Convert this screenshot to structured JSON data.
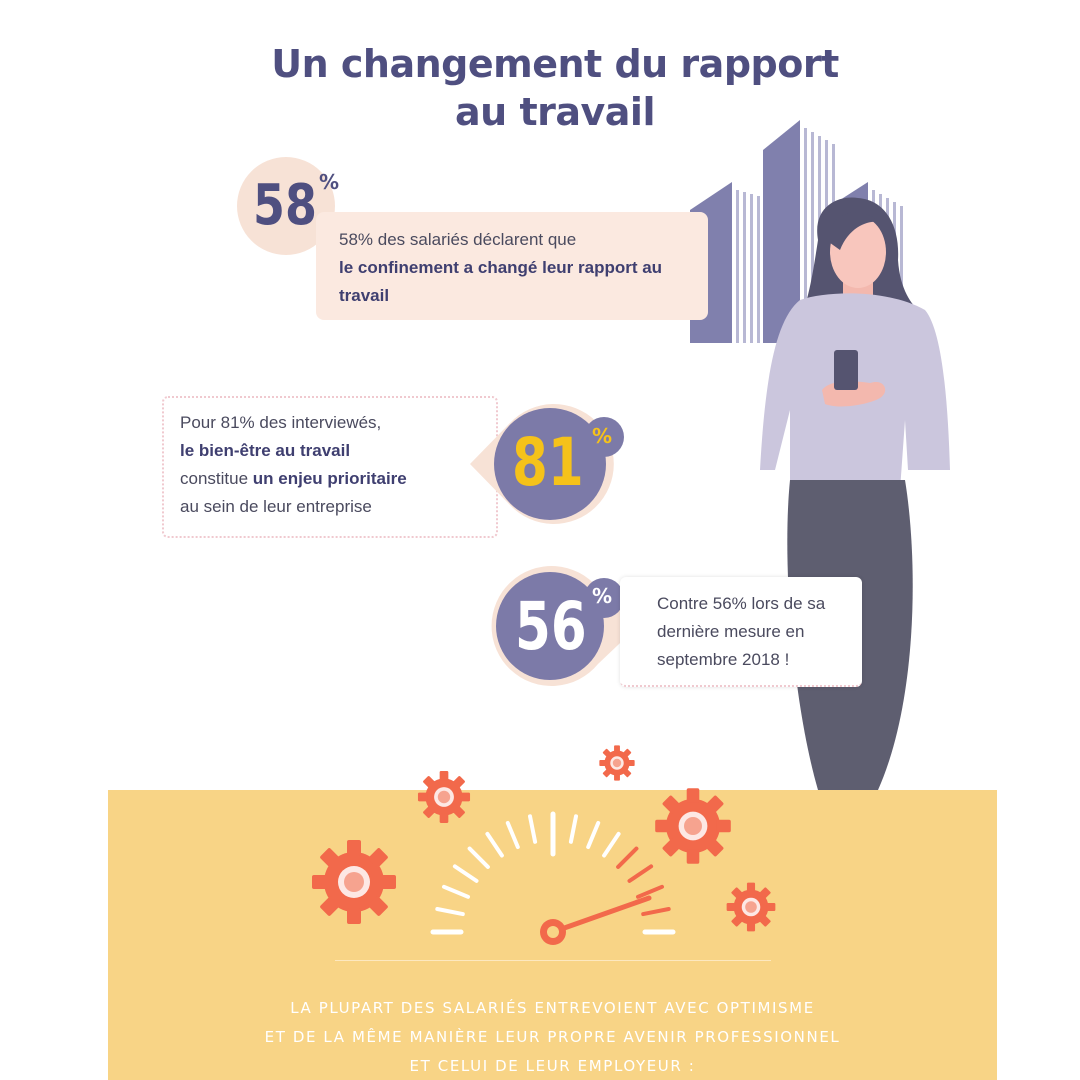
{
  "title": {
    "line1": "Un changement du rapport",
    "line2": "au travail"
  },
  "stat_58": {
    "value": "58",
    "unit": "%",
    "text_plain": "58% des salariés déclarent que",
    "text_bold": "le confinement a changé leur rapport au travail"
  },
  "stat_81": {
    "value": "81",
    "unit": "%",
    "text_plain_1": "Pour 81% des interviewés,",
    "text_bold_1": "le bien-être au travail",
    "text_plain_2": "constitue",
    "text_bold_2": "un enjeu prioritaire",
    "text_plain_3": "au sein de leur entreprise"
  },
  "stat_56": {
    "value": "56",
    "unit": "%",
    "text": "Contre 56% lors de sa dernière mesure en septembre 2018 !"
  },
  "footer": {
    "line1": "La plupart des salariés entrevoient avec optimisme",
    "line2": "et de la même manière leur propre avenir professionnel",
    "line3": "et celui de leur employeur :"
  },
  "colors": {
    "primary": "#4f4f80",
    "accent_yellow": "#f5c21a",
    "gear_orange": "#f2694b",
    "band": "#f8d486",
    "peach": "#f7e2d6"
  },
  "icons": [
    "building-illustration",
    "woman-with-phone-illustration",
    "gear-icon",
    "speedometer-icon"
  ]
}
